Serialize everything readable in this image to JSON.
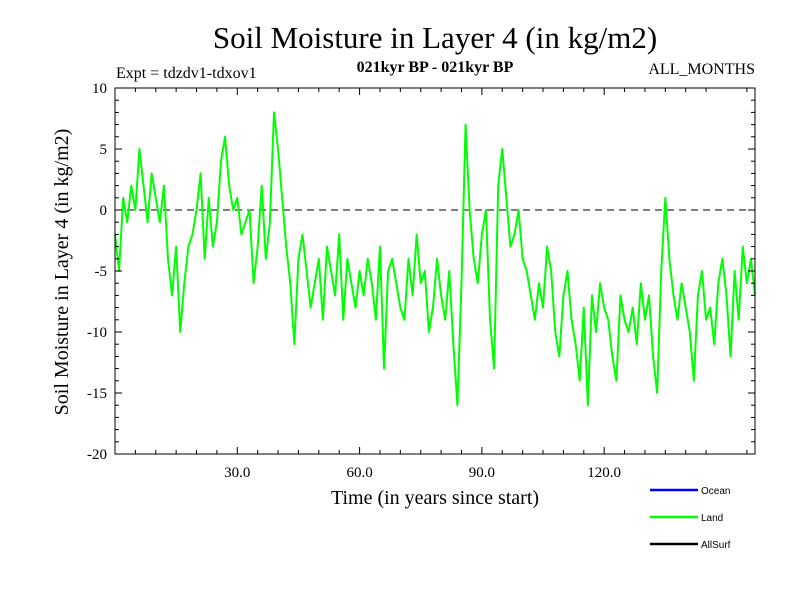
{
  "chart_data": {
    "type": "line",
    "title": "Soil Moisture in Layer 4 (in kg/m2)",
    "subtitle_left": "Expt = tdzdv1-tdxov1",
    "subtitle_center": "021kyr BP - 021kyr BP",
    "subtitle_right": "ALL_MONTHS",
    "xlabel": "Time (in years since start)",
    "ylabel": "Soil Moisture in Layer 4 (in kg/m2)",
    "xlim": [
      0,
      157
    ],
    "ylim": [
      -20,
      10
    ],
    "x_ticks": [
      30,
      60,
      90,
      120
    ],
    "x_tick_labels": [
      "30.0",
      "60.0",
      "90.0",
      "120.0"
    ],
    "y_ticks": [
      10,
      5,
      0,
      -5,
      -10,
      -15,
      -20
    ],
    "y_tick_labels": [
      "10",
      "5",
      "0",
      "-5",
      "-10",
      "-15",
      "-20"
    ],
    "zero_line": "dashed",
    "legend_position": "bottom-right",
    "series": [
      {
        "name": "Ocean",
        "color": "#0000ff",
        "shown": false,
        "values": []
      },
      {
        "name": "Land",
        "color": "#00ff00",
        "shown": true,
        "x": [
          0,
          1,
          2,
          3,
          4,
          5,
          6,
          7,
          8,
          9,
          10,
          11,
          12,
          13,
          14,
          15,
          16,
          17,
          18,
          19,
          20,
          21,
          22,
          23,
          24,
          25,
          26,
          27,
          28,
          29,
          30,
          31,
          32,
          33,
          34,
          35,
          36,
          37,
          38,
          39,
          40,
          41,
          42,
          43,
          44,
          45,
          46,
          47,
          48,
          49,
          50,
          51,
          52,
          53,
          54,
          55,
          56,
          57,
          58,
          59,
          60,
          61,
          62,
          63,
          64,
          65,
          66,
          67,
          68,
          69,
          70,
          71,
          72,
          73,
          74,
          75,
          76,
          77,
          78,
          79,
          80,
          81,
          82,
          83,
          84,
          85,
          86,
          87,
          88,
          89,
          90,
          91,
          92,
          93,
          94,
          95,
          96,
          97,
          98,
          99,
          100,
          101,
          102,
          103,
          104,
          105,
          106,
          107,
          108,
          109,
          110,
          111,
          112,
          113,
          114,
          115,
          116,
          117,
          118,
          119,
          120,
          121,
          122,
          123,
          124,
          125,
          126,
          127,
          128,
          129,
          130,
          131,
          132,
          133,
          134,
          135,
          136,
          137,
          138,
          139,
          140,
          141,
          142,
          143,
          144,
          145,
          146,
          147,
          148,
          149,
          150,
          151,
          152,
          153,
          154,
          155,
          156,
          157
        ],
        "values": [
          -2,
          -5,
          1,
          -1,
          2,
          0,
          5,
          2,
          -1,
          3,
          1,
          -1,
          2,
          -4,
          -7,
          -3,
          -10,
          -6,
          -3,
          -2,
          0,
          3,
          -4,
          1,
          -3,
          -1,
          4,
          6,
          2,
          0,
          1,
          -2,
          -1,
          0,
          -6,
          -3,
          2,
          -4,
          -1,
          8,
          5,
          1,
          -3,
          -6,
          -11,
          -4,
          -2,
          -5,
          -8,
          -6,
          -4,
          -9,
          -3,
          -5,
          -7,
          -2,
          -9,
          -4,
          -6,
          -8,
          -5,
          -7,
          -4,
          -6,
          -9,
          -3,
          -13,
          -5,
          -4,
          -6,
          -8,
          -9,
          -4,
          -7,
          -2,
          -6,
          -5,
          -10,
          -8,
          -4,
          -7,
          -9,
          -5,
          -11,
          -16,
          -6,
          7,
          0,
          -4,
          -6,
          -2,
          0,
          -9,
          -13,
          2,
          5,
          1,
          -3,
          -2,
          0,
          -4,
          -5,
          -7,
          -9,
          -6,
          -8,
          -3,
          -5,
          -10,
          -12,
          -7,
          -5,
          -9,
          -11,
          -14,
          -8,
          -16,
          -7,
          -10,
          -6,
          -8,
          -9,
          -12,
          -14,
          -7,
          -9,
          -10,
          -8,
          -11,
          -6,
          -9,
          -7,
          -12,
          -15,
          -5,
          1,
          -4,
          -7,
          -9,
          -6,
          -8,
          -10,
          -14,
          -7,
          -5,
          -9,
          -8,
          -11,
          -6,
          -4,
          -7,
          -12,
          -5,
          -9,
          -3,
          -6,
          -4,
          -7
        ]
      },
      {
        "name": "AllSurf",
        "color": "#000000",
        "shown": false,
        "values": []
      }
    ]
  }
}
